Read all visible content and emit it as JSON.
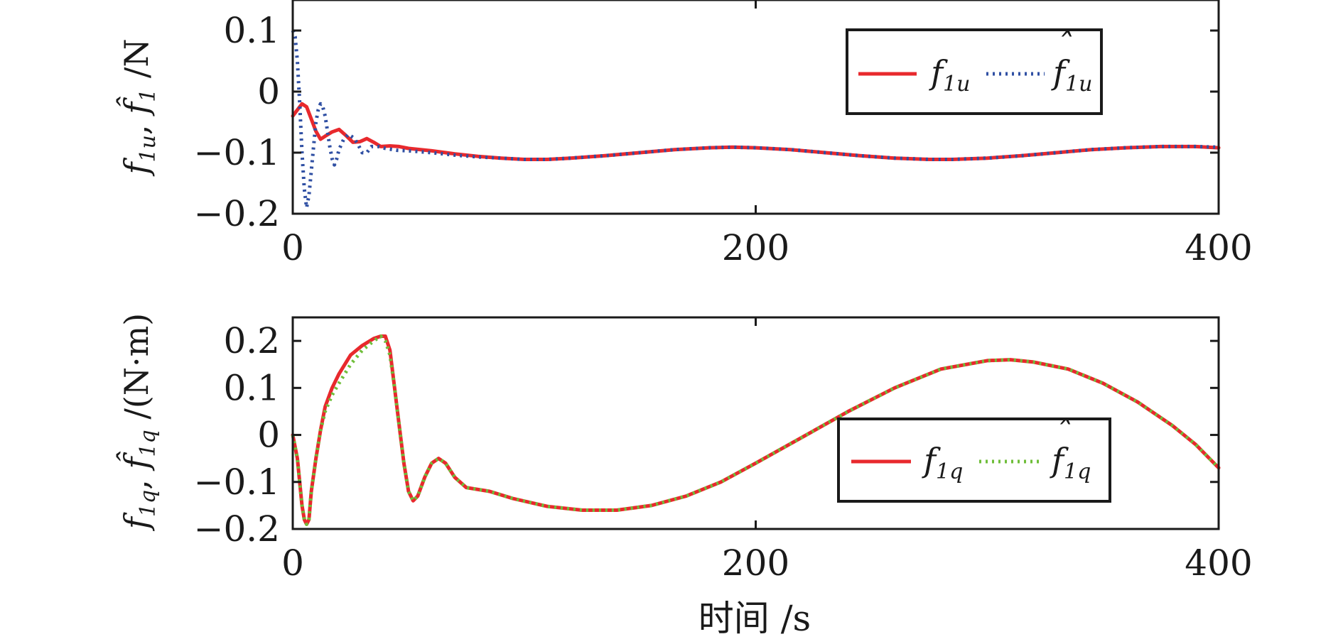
{
  "chart_data": [
    {
      "type": "line",
      "ylabel": "f1u, f̂1 /N",
      "xlim": [
        0,
        400
      ],
      "ylim": [
        -0.2,
        0.15
      ],
      "xticks": [
        "0",
        "200",
        "400"
      ],
      "yticks": [
        "0.1",
        "0",
        "−0.1",
        "−0.2"
      ],
      "legend_position": "top-right",
      "series": [
        {
          "name": "f1u",
          "color": "#e8292d",
          "style": "solid",
          "points": [
            [
              0,
              -0.04
            ],
            [
              2,
              -0.03
            ],
            [
              4,
              -0.02
            ],
            [
              6,
              -0.025
            ],
            [
              8,
              -0.045
            ],
            [
              10,
              -0.065
            ],
            [
              12,
              -0.078
            ],
            [
              14,
              -0.073
            ],
            [
              17,
              -0.066
            ],
            [
              20,
              -0.062
            ],
            [
              23,
              -0.072
            ],
            [
              26,
              -0.083
            ],
            [
              29,
              -0.082
            ],
            [
              32,
              -0.077
            ],
            [
              35,
              -0.083
            ],
            [
              38,
              -0.09
            ],
            [
              42,
              -0.089
            ],
            [
              46,
              -0.09
            ],
            [
              50,
              -0.093
            ],
            [
              60,
              -0.097
            ],
            [
              70,
              -0.102
            ],
            [
              80,
              -0.106
            ],
            [
              90,
              -0.109
            ],
            [
              100,
              -0.111
            ],
            [
              110,
              -0.111
            ],
            [
              120,
              -0.109
            ],
            [
              135,
              -0.105
            ],
            [
              150,
              -0.1
            ],
            [
              165,
              -0.095
            ],
            [
              180,
              -0.092
            ],
            [
              190,
              -0.091
            ],
            [
              200,
              -0.092
            ],
            [
              215,
              -0.095
            ],
            [
              230,
              -0.1
            ],
            [
              245,
              -0.105
            ],
            [
              260,
              -0.109
            ],
            [
              275,
              -0.111
            ],
            [
              285,
              -0.111
            ],
            [
              300,
              -0.109
            ],
            [
              315,
              -0.105
            ],
            [
              330,
              -0.1
            ],
            [
              345,
              -0.095
            ],
            [
              360,
              -0.092
            ],
            [
              375,
              -0.09
            ],
            [
              390,
              -0.09
            ],
            [
              400,
              -0.092
            ]
          ]
        },
        {
          "name": "f̂1u",
          "color": "#2f4fa3",
          "style": "dotted",
          "points": [
            [
              0,
              0.1
            ],
            [
              1,
              0.09
            ],
            [
              2,
              0.05
            ],
            [
              3,
              -0.02
            ],
            [
              4,
              -0.1
            ],
            [
              5,
              -0.16
            ],
            [
              6,
              -0.19
            ],
            [
              7,
              -0.17
            ],
            [
              8,
              -0.13
            ],
            [
              9,
              -0.09
            ],
            [
              10,
              -0.05
            ],
            [
              11,
              -0.03
            ],
            [
              12,
              -0.02
            ],
            [
              13,
              -0.025
            ],
            [
              14,
              -0.04
            ],
            [
              15,
              -0.065
            ],
            [
              16,
              -0.09
            ],
            [
              17,
              -0.11
            ],
            [
              18,
              -0.12
            ],
            [
              19,
              -0.11
            ],
            [
              20,
              -0.095
            ],
            [
              22,
              -0.078
            ],
            [
              24,
              -0.07
            ],
            [
              26,
              -0.075
            ],
            [
              28,
              -0.085
            ],
            [
              30,
              -0.1
            ],
            [
              32,
              -0.1
            ],
            [
              34,
              -0.09
            ],
            [
              37,
              -0.09
            ],
            [
              40,
              -0.093
            ],
            [
              45,
              -0.096
            ],
            [
              50,
              -0.097
            ],
            [
              60,
              -0.1
            ],
            [
              70,
              -0.104
            ],
            [
              80,
              -0.107
            ],
            [
              90,
              -0.109
            ],
            [
              100,
              -0.111
            ],
            [
              110,
              -0.111
            ],
            [
              120,
              -0.109
            ],
            [
              135,
              -0.105
            ],
            [
              150,
              -0.1
            ],
            [
              165,
              -0.095
            ],
            [
              180,
              -0.092
            ],
            [
              190,
              -0.091
            ],
            [
              200,
              -0.092
            ],
            [
              215,
              -0.095
            ],
            [
              230,
              -0.1
            ],
            [
              245,
              -0.105
            ],
            [
              260,
              -0.109
            ],
            [
              275,
              -0.111
            ],
            [
              285,
              -0.111
            ],
            [
              300,
              -0.109
            ],
            [
              315,
              -0.105
            ],
            [
              330,
              -0.1
            ],
            [
              345,
              -0.095
            ],
            [
              360,
              -0.092
            ],
            [
              375,
              -0.09
            ],
            [
              390,
              -0.09
            ],
            [
              400,
              -0.091
            ]
          ]
        }
      ]
    },
    {
      "type": "line",
      "xlabel": "时间 /s",
      "ylabel": "f1q, f̂1q /(N·m)",
      "xlim": [
        0,
        400
      ],
      "ylim": [
        -0.2,
        0.25
      ],
      "xticks": [
        "0",
        "200",
        "400"
      ],
      "yticks": [
        "0.2",
        "0.1",
        "0",
        "−0.1",
        "−0.2"
      ],
      "legend_position": "bottom-right",
      "series": [
        {
          "name": "f1q",
          "color": "#e8292d",
          "style": "solid",
          "points": [
            [
              0,
              0
            ],
            [
              2,
              -0.05
            ],
            [
              4,
              -0.15
            ],
            [
              5,
              -0.18
            ],
            [
              6,
              -0.19
            ],
            [
              7,
              -0.18
            ],
            [
              8,
              -0.12
            ],
            [
              10,
              -0.05
            ],
            [
              12,
              0.01
            ],
            [
              14,
              0.06
            ],
            [
              17,
              0.1
            ],
            [
              20,
              0.13
            ],
            [
              25,
              0.17
            ],
            [
              30,
              0.19
            ],
            [
              35,
              0.205
            ],
            [
              38,
              0.21
            ],
            [
              40,
              0.21
            ],
            [
              42,
              0.18
            ],
            [
              44,
              0.1
            ],
            [
              46,
              0.02
            ],
            [
              48,
              -0.06
            ],
            [
              50,
              -0.12
            ],
            [
              52,
              -0.14
            ],
            [
              54,
              -0.13
            ],
            [
              57,
              -0.09
            ],
            [
              60,
              -0.06
            ],
            [
              63,
              -0.05
            ],
            [
              66,
              -0.06
            ],
            [
              70,
              -0.09
            ],
            [
              75,
              -0.112
            ],
            [
              85,
              -0.12
            ],
            [
              95,
              -0.135
            ],
            [
              110,
              -0.152
            ],
            [
              125,
              -0.16
            ],
            [
              140,
              -0.16
            ],
            [
              155,
              -0.15
            ],
            [
              170,
              -0.13
            ],
            [
              185,
              -0.1
            ],
            [
              200,
              -0.06
            ],
            [
              220,
              -0.005
            ],
            [
              240,
              0.05
            ],
            [
              260,
              0.1
            ],
            [
              280,
              0.14
            ],
            [
              300,
              0.158
            ],
            [
              310,
              0.16
            ],
            [
              320,
              0.155
            ],
            [
              335,
              0.14
            ],
            [
              350,
              0.11
            ],
            [
              365,
              0.07
            ],
            [
              380,
              0.02
            ],
            [
              390,
              -0.02
            ],
            [
              400,
              -0.07
            ]
          ]
        },
        {
          "name": "f̂1q",
          "color": "#6fbe3a",
          "style": "dotted",
          "points": [
            [
              0,
              0
            ],
            [
              2,
              -0.05
            ],
            [
              4,
              -0.15
            ],
            [
              5,
              -0.18
            ],
            [
              6,
              -0.19
            ],
            [
              7,
              -0.18
            ],
            [
              8,
              -0.12
            ],
            [
              10,
              -0.05
            ],
            [
              12,
              0.01
            ],
            [
              14,
              0.05
            ],
            [
              17,
              0.085
            ],
            [
              20,
              0.11
            ],
            [
              25,
              0.15
            ],
            [
              30,
              0.18
            ],
            [
              35,
              0.2
            ],
            [
              38,
              0.21
            ],
            [
              40,
              0.2
            ],
            [
              42,
              0.17
            ],
            [
              44,
              0.1
            ],
            [
              46,
              0.02
            ],
            [
              48,
              -0.06
            ],
            [
              50,
              -0.12
            ],
            [
              52,
              -0.14
            ],
            [
              54,
              -0.13
            ],
            [
              57,
              -0.09
            ],
            [
              60,
              -0.06
            ],
            [
              63,
              -0.05
            ],
            [
              66,
              -0.06
            ],
            [
              70,
              -0.09
            ],
            [
              75,
              -0.112
            ],
            [
              85,
              -0.12
            ],
            [
              95,
              -0.135
            ],
            [
              110,
              -0.152
            ],
            [
              125,
              -0.16
            ],
            [
              140,
              -0.16
            ],
            [
              155,
              -0.15
            ],
            [
              170,
              -0.13
            ],
            [
              185,
              -0.1
            ],
            [
              200,
              -0.06
            ],
            [
              220,
              -0.005
            ],
            [
              240,
              0.05
            ],
            [
              260,
              0.1
            ],
            [
              280,
              0.14
            ],
            [
              300,
              0.158
            ],
            [
              310,
              0.16
            ],
            [
              320,
              0.155
            ],
            [
              335,
              0.14
            ],
            [
              350,
              0.11
            ],
            [
              365,
              0.07
            ],
            [
              380,
              0.02
            ],
            [
              390,
              -0.02
            ],
            [
              400,
              -0.07
            ]
          ]
        }
      ]
    }
  ]
}
